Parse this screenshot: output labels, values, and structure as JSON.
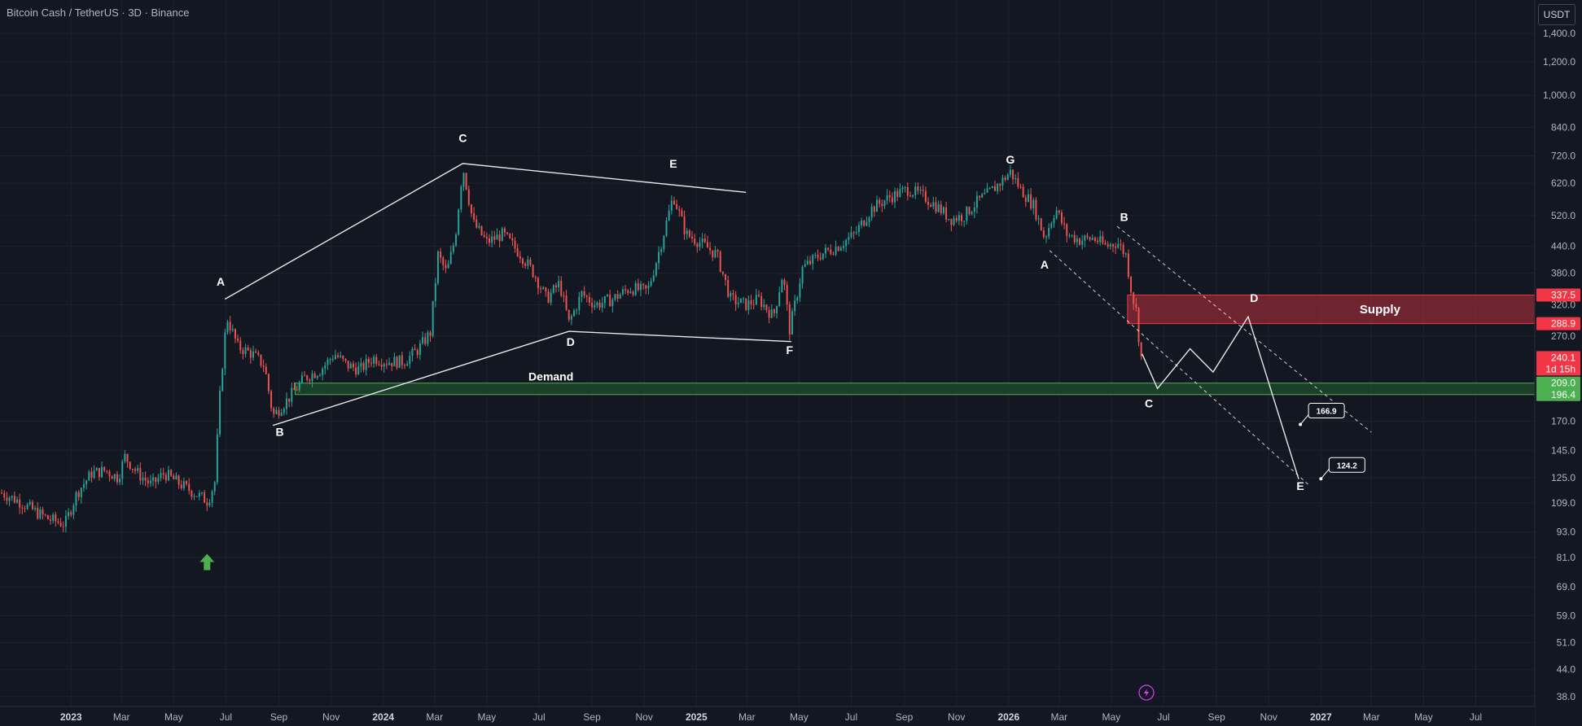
{
  "header": {
    "title": "Bitcoin Cash / TetherUS · 3D · Binance",
    "currency_button": "USDT"
  },
  "colors": {
    "background": "#131722",
    "grid": "#1e222d",
    "axis_text": "#b2b5be",
    "candle_up": "#26a69a",
    "candle_down": "#ef5350",
    "supply_fill": "#8e2b36",
    "supply_border": "#f23645",
    "demand_fill": "#1f4a2c",
    "demand_border": "#4caf50",
    "annotation": "#ffffff",
    "buy_arrow": "#4caf50",
    "badge_magenta": "#e040fb"
  },
  "price_badges": [
    {
      "label": "337.5",
      "value": 337.5,
      "color": "#f23645"
    },
    {
      "label": "288.9",
      "value": 288.9,
      "color": "#f23645"
    },
    {
      "label": "240.1",
      "value": 240.1,
      "color": "#f23645",
      "sub": "1d 15h"
    },
    {
      "label": "209.0",
      "value": 209.0,
      "color": "#4caf50"
    },
    {
      "label": "196.4",
      "value": 196.4,
      "color": "#4caf50"
    }
  ],
  "zones": {
    "supply": {
      "label": "Supply",
      "top": 337.5,
      "bottom": 288.9,
      "start": "2026-05-20"
    },
    "demand": {
      "label": "Demand",
      "top": 209.0,
      "bottom": 196.4,
      "start": "2023-09-20"
    }
  },
  "target_labels": [
    {
      "label": "166.9",
      "value": 166.9,
      "date": "2026-12-08"
    },
    {
      "label": "124.2",
      "value": 124.2,
      "date": "2027-01-01"
    }
  ],
  "pattern_lines": [
    {
      "points": [
        [
          "2023-06-30",
          330
        ],
        [
          "2024-04-03",
          690
        ],
        [
          "2025-02-28",
          590
        ]
      ]
    },
    {
      "points": [
        [
          "2023-08-25",
          166
        ],
        [
          "2024-08-05",
          277
        ],
        [
          "2025-04-22",
          262
        ]
      ]
    },
    {
      "dashed": true,
      "points": [
        [
          "2026-02-18",
          430
        ],
        [
          "2026-12-18",
          120
        ]
      ]
    },
    {
      "dashed": true,
      "points": [
        [
          "2026-05-08",
          490
        ],
        [
          "2027-03-01",
          160
        ]
      ]
    },
    {
      "points": [
        [
          "2026-06-06",
          245
        ],
        [
          "2026-06-24",
          203
        ],
        [
          "2026-08-01",
          252
        ],
        [
          "2026-08-28",
          222
        ],
        [
          "2026-10-08",
          300
        ],
        [
          "2026-12-06",
          124
        ]
      ]
    }
  ],
  "wave_labels": [
    {
      "text": "A",
      "date": "2023-06-25",
      "value": 355
    },
    {
      "text": "B",
      "date": "2023-09-02",
      "value": 157
    },
    {
      "text": "C",
      "date": "2024-04-03",
      "value": 775
    },
    {
      "text": "D",
      "date": "2024-08-07",
      "value": 256
    },
    {
      "text": "E",
      "date": "2024-12-05",
      "value": 675
    },
    {
      "text": "F",
      "date": "2025-04-20",
      "value": 245
    },
    {
      "text": "G",
      "date": "2026-01-03",
      "value": 690
    },
    {
      "text": "A",
      "date": "2026-02-12",
      "value": 390
    },
    {
      "text": "B",
      "date": "2026-05-16",
      "value": 505
    },
    {
      "text": "C",
      "date": "2026-06-14",
      "value": 183
    },
    {
      "text": "D",
      "date": "2026-10-15",
      "value": 325
    },
    {
      "text": "E",
      "date": "2026-12-08",
      "value": 117
    }
  ],
  "chart_data": {
    "type": "candlestick",
    "title": "Bitcoin Cash / TetherUS · 3D · Binance",
    "scale": "log",
    "ylim": [
      36,
      1650
    ],
    "xlim": [
      "2022-10-10",
      "2027-09-08"
    ],
    "y_ticks": [
      {
        "label": "1,400.0",
        "value": 1400
      },
      {
        "label": "1,200.0",
        "value": 1200
      },
      {
        "label": "1,000.0",
        "value": 1000
      },
      {
        "label": "840.0",
        "value": 840
      },
      {
        "label": "720.0",
        "value": 720
      },
      {
        "label": "620.0",
        "value": 620
      },
      {
        "label": "520.0",
        "value": 520
      },
      {
        "label": "440.0",
        "value": 440
      },
      {
        "label": "380.0",
        "value": 380
      },
      {
        "label": "320.0",
        "value": 320
      },
      {
        "label": "270.0",
        "value": 270
      },
      {
        "label": "170.0",
        "value": 170
      },
      {
        "label": "145.0",
        "value": 145
      },
      {
        "label": "125.0",
        "value": 125
      },
      {
        "label": "109.0",
        "value": 109
      },
      {
        "label": "93.0",
        "value": 93
      },
      {
        "label": "81.0",
        "value": 81
      },
      {
        "label": "69.0",
        "value": 69
      },
      {
        "label": "59.0",
        "value": 59
      },
      {
        "label": "51.0",
        "value": 51
      },
      {
        "label": "44.0",
        "value": 44
      },
      {
        "label": "38.0",
        "value": 38
      }
    ],
    "x_ticks": [
      {
        "label": "2023",
        "date": "2023-01-01",
        "bold": true
      },
      {
        "label": "Mar",
        "date": "2023-03-01"
      },
      {
        "label": "May",
        "date": "2023-05-01"
      },
      {
        "label": "Jul",
        "date": "2023-07-01"
      },
      {
        "label": "Sep",
        "date": "2023-09-01"
      },
      {
        "label": "Nov",
        "date": "2023-11-01"
      },
      {
        "label": "2024",
        "date": "2024-01-01",
        "bold": true
      },
      {
        "label": "Mar",
        "date": "2024-03-01"
      },
      {
        "label": "May",
        "date": "2024-05-01"
      },
      {
        "label": "Jul",
        "date": "2024-07-01"
      },
      {
        "label": "Sep",
        "date": "2024-09-01"
      },
      {
        "label": "Nov",
        "date": "2024-11-01"
      },
      {
        "label": "2025",
        "date": "2025-01-01",
        "bold": true
      },
      {
        "label": "Mar",
        "date": "2025-03-01"
      },
      {
        "label": "May",
        "date": "2025-05-01"
      },
      {
        "label": "Jul",
        "date": "2025-07-01"
      },
      {
        "label": "Sep",
        "date": "2025-09-01"
      },
      {
        "label": "Nov",
        "date": "2025-11-01"
      },
      {
        "label": "2026",
        "date": "2026-01-01",
        "bold": true
      },
      {
        "label": "Mar",
        "date": "2026-03-01"
      },
      {
        "label": "May",
        "date": "2026-05-01"
      },
      {
        "label": "Jul",
        "date": "2026-07-01"
      },
      {
        "label": "Sep",
        "date": "2026-09-01"
      },
      {
        "label": "Nov",
        "date": "2026-11-01"
      },
      {
        "label": "2027",
        "date": "2027-01-01",
        "bold": true
      },
      {
        "label": "Mar",
        "date": "2027-03-01"
      },
      {
        "label": "May",
        "date": "2027-05-01"
      },
      {
        "label": "Jul",
        "date": "2027-07-01"
      }
    ],
    "price_path": [
      [
        "2022-10-12",
        115
      ],
      [
        "2022-11-01",
        110
      ],
      [
        "2022-11-20",
        104
      ],
      [
        "2022-12-05",
        100
      ],
      [
        "2022-12-25",
        97
      ],
      [
        "2023-01-08",
        115
      ],
      [
        "2023-01-25",
        128
      ],
      [
        "2023-02-10",
        130
      ],
      [
        "2023-02-25",
        125
      ],
      [
        "2023-03-05",
        140
      ],
      [
        "2023-03-20",
        128
      ],
      [
        "2023-04-05",
        120
      ],
      [
        "2023-04-20",
        128
      ],
      [
        "2023-05-05",
        122
      ],
      [
        "2023-05-25",
        115
      ],
      [
        "2023-06-10",
        110
      ],
      [
        "2023-06-18",
        122
      ],
      [
        "2023-06-25",
        210
      ],
      [
        "2023-07-02",
        300
      ],
      [
        "2023-07-15",
        255
      ],
      [
        "2023-08-01",
        245
      ],
      [
        "2023-08-15",
        230
      ],
      [
        "2023-08-25",
        175
      ],
      [
        "2023-09-10",
        190
      ],
      [
        "2023-10-01",
        215
      ],
      [
        "2023-10-20",
        225
      ],
      [
        "2023-11-05",
        245
      ],
      [
        "2023-11-20",
        230
      ],
      [
        "2023-12-05",
        225
      ],
      [
        "2023-12-20",
        240
      ],
      [
        "2024-01-05",
        235
      ],
      [
        "2024-01-25",
        235
      ],
      [
        "2024-02-10",
        250
      ],
      [
        "2024-02-25",
        275
      ],
      [
        "2024-03-05",
        420
      ],
      [
        "2024-03-15",
        380
      ],
      [
        "2024-03-25",
        460
      ],
      [
        "2024-04-03",
        680
      ],
      [
        "2024-04-15",
        500
      ],
      [
        "2024-05-01",
        450
      ],
      [
        "2024-05-20",
        470
      ],
      [
        "2024-06-10",
        420
      ],
      [
        "2024-06-25",
        380
      ],
      [
        "2024-07-10",
        330
      ],
      [
        "2024-07-25",
        360
      ],
      [
        "2024-08-05",
        290
      ],
      [
        "2024-08-20",
        340
      ],
      [
        "2024-09-05",
        320
      ],
      [
        "2024-09-25",
        330
      ],
      [
        "2024-10-15",
        350
      ],
      [
        "2024-11-05",
        345
      ],
      [
        "2024-11-20",
        440
      ],
      [
        "2024-12-05",
        580
      ],
      [
        "2024-12-20",
        470
      ],
      [
        "2025-01-05",
        450
      ],
      [
        "2025-01-25",
        420
      ],
      [
        "2025-02-10",
        330
      ],
      [
        "2025-02-28",
        320
      ],
      [
        "2025-03-15",
        330
      ],
      [
        "2025-04-01",
        300
      ],
      [
        "2025-04-12",
        380
      ],
      [
        "2025-04-20",
        280
      ],
      [
        "2025-05-05",
        390
      ],
      [
        "2025-05-25",
        420
      ],
      [
        "2025-06-15",
        440
      ],
      [
        "2025-07-05",
        470
      ],
      [
        "2025-07-25",
        540
      ],
      [
        "2025-08-15",
        575
      ],
      [
        "2025-09-05",
        600
      ],
      [
        "2025-09-25",
        575
      ],
      [
        "2025-10-10",
        545
      ],
      [
        "2025-10-25",
        510
      ],
      [
        "2025-11-10",
        520
      ],
      [
        "2025-11-25",
        560
      ],
      [
        "2025-12-10",
        590
      ],
      [
        "2025-12-25",
        630
      ],
      [
        "2026-01-03",
        660
      ],
      [
        "2026-01-15",
        600
      ],
      [
        "2026-01-30",
        550
      ],
      [
        "2026-02-12",
        460
      ],
      [
        "2026-02-25",
        540
      ],
      [
        "2026-03-10",
        470
      ],
      [
        "2026-03-25",
        455
      ],
      [
        "2026-04-10",
        460
      ],
      [
        "2026-04-25",
        440
      ],
      [
        "2026-05-08",
        450
      ],
      [
        "2026-05-18",
        420
      ],
      [
        "2026-05-25",
        340
      ],
      [
        "2026-05-30",
        310
      ],
      [
        "2026-06-02",
        270
      ],
      [
        "2026-06-05",
        240
      ]
    ]
  }
}
